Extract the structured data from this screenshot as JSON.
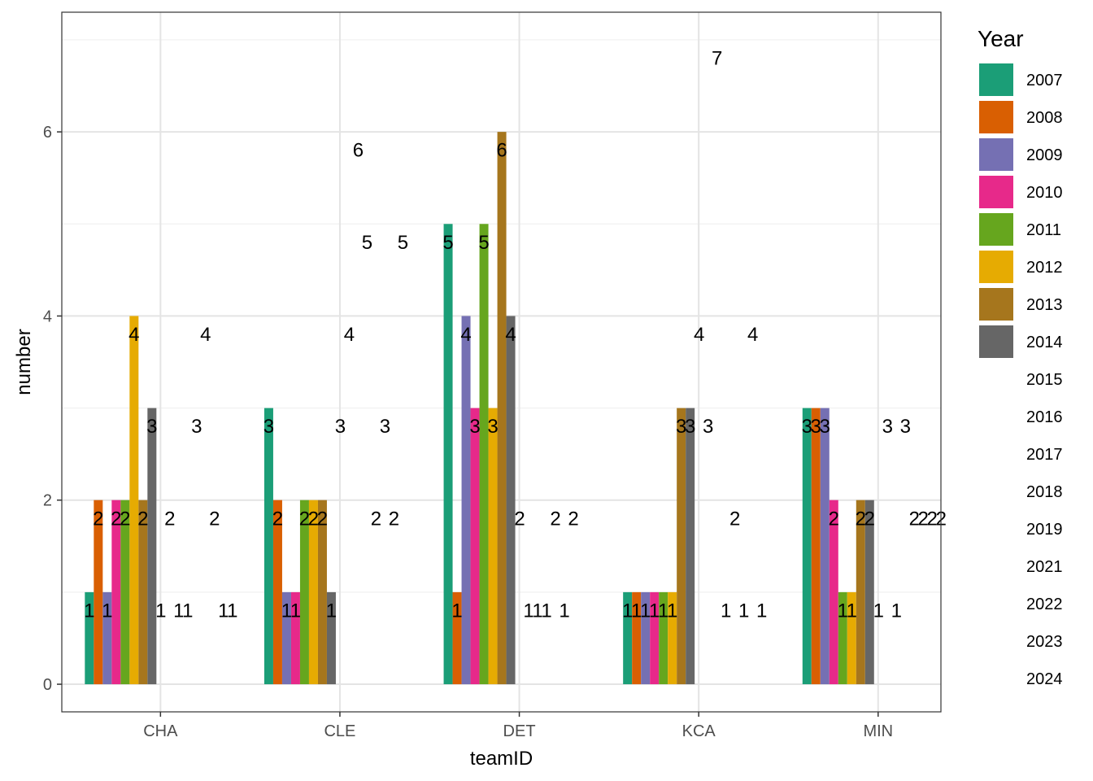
{
  "chart_data": {
    "type": "bar",
    "xlabel": "teamID",
    "ylabel": "number",
    "ylim": [
      -0.3,
      7.3
    ],
    "y_ticks": [
      0,
      2,
      4,
      6
    ],
    "grid": true,
    "legend_title": "Year",
    "legend_position": "right",
    "categories": [
      "CHA",
      "CLE",
      "DET",
      "KCA",
      "MIN"
    ],
    "bar_series": [
      {
        "name": "2007",
        "color": "#1B9E77",
        "values": [
          1,
          3,
          5,
          1,
          3
        ]
      },
      {
        "name": "2008",
        "color": "#D95F02",
        "values": [
          2,
          2,
          1,
          1,
          3
        ]
      },
      {
        "name": "2009",
        "color": "#7570B3",
        "values": [
          1,
          1,
          4,
          1,
          3
        ]
      },
      {
        "name": "2010",
        "color": "#E7298A",
        "values": [
          2,
          1,
          3,
          1,
          2
        ]
      },
      {
        "name": "2011",
        "color": "#66A61E",
        "values": [
          2,
          2,
          5,
          1,
          1
        ]
      },
      {
        "name": "2012",
        "color": "#E6AB02",
        "values": [
          4,
          2,
          3,
          1,
          1
        ]
      },
      {
        "name": "2013",
        "color": "#A6761D",
        "values": [
          2,
          2,
          6,
          3,
          2
        ]
      },
      {
        "name": "2014",
        "color": "#666666",
        "values": [
          3,
          1,
          4,
          3,
          2
        ]
      }
    ],
    "label_only_years": [
      "2015",
      "2016",
      "2017",
      "2018",
      "2019",
      "2021",
      "2022",
      "2023",
      "2024"
    ],
    "label_only_values": {
      "CHA": [
        1,
        2,
        1,
        1,
        3,
        4,
        2,
        1,
        1
      ],
      "CLE": [
        3,
        4,
        6,
        5,
        2,
        3,
        2,
        5,
        null
      ],
      "DET": [
        2,
        1,
        1,
        1,
        2,
        1,
        2,
        null,
        null
      ],
      "KCA": [
        4,
        3,
        7,
        1,
        2,
        1,
        4,
        1,
        null
      ],
      "MIN": [
        1,
        3,
        1,
        3,
        2,
        2,
        2,
        2,
        null
      ]
    }
  }
}
